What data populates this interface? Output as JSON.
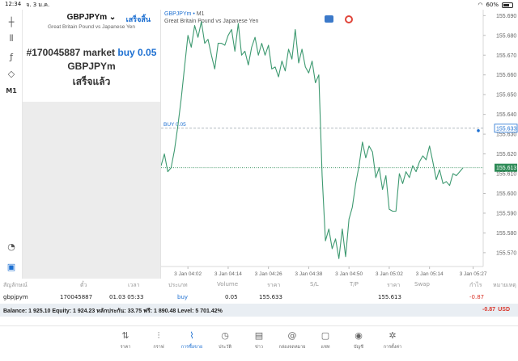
{
  "status_bar": {
    "time": "12:34",
    "date": "จ. 3 ม.ค.",
    "battery": "60%",
    "battery_level": 0.6
  },
  "order_panel": {
    "symbol": "GBPJPYm",
    "description": "Great Britain Pound vs Japanese Yen",
    "done_link": "เสร็จสิ้น",
    "order_number": "#170045887",
    "order_type": "market",
    "side_volume": "buy 0.05",
    "result_symbol": "GBPJPYm",
    "status": "เสร็จแล้ว"
  },
  "toolbar": {
    "tools": [
      {
        "name": "crosshair-icon",
        "glyph": "┼"
      },
      {
        "name": "indicators-icon",
        "glyph": "⫴"
      },
      {
        "name": "function-icon",
        "glyph": "ƒ"
      },
      {
        "name": "objects-icon",
        "glyph": "◇"
      },
      {
        "name": "timeframe-button",
        "glyph": "M1"
      }
    ],
    "bottom_tools": [
      {
        "name": "chart-settings-icon",
        "glyph": "◔"
      },
      {
        "name": "trade-icon",
        "glyph": "▣"
      }
    ]
  },
  "chart": {
    "symbol": "GBPJPYm",
    "timeframe": "M1",
    "description": "Great Britain Pound vs Japanese Yen",
    "buy_line_label": "BUY 0.05",
    "buy_price_label": "155.633",
    "bid_price_label": "155.613",
    "colors": {
      "line": "#3d9970",
      "buy_line": "#9aa3ad",
      "bid_line": "#2e8b57",
      "price_tag_blue": "#1c6fd1",
      "price_tag_green": "#2e8b57"
    }
  },
  "chart_data": {
    "type": "line",
    "title": "",
    "xlabel": "",
    "ylabel": "",
    "ylim": [
      155.563,
      155.693
    ],
    "y_ticks": [
      155.69,
      155.68,
      155.67,
      155.66,
      155.65,
      155.64,
      155.63,
      155.62,
      155.61,
      155.6,
      155.59,
      155.58,
      155.57
    ],
    "y_tick_labels": [
      "155.690",
      "155.680",
      "155.670",
      "155.660",
      "155.650",
      "155.640",
      "155.630",
      "155.620",
      "155.610",
      "155.600",
      "155.590",
      "155.580",
      "155.570"
    ],
    "x_tick_labels": [
      "3 Jan 04:02",
      "3 Jan 04:14",
      "3 Jan 04:26",
      "3 Jan 04:38",
      "3 Jan 04:50",
      "3 Jan 05:02",
      "3 Jan 05:14",
      "3 Jan 05:27"
    ],
    "x_tick_positions": [
      8,
      20,
      32,
      44,
      56,
      68,
      80,
      93
    ],
    "x_range": [
      0,
      96
    ],
    "buy_level": 155.633,
    "bid_level": 155.613,
    "series": [
      {
        "x": [
          0,
          1,
          2,
          3,
          4,
          5,
          6,
          7,
          8,
          9,
          10,
          11,
          12,
          13,
          14,
          15,
          16,
          17,
          18,
          19,
          20,
          21,
          22,
          23,
          24,
          25,
          26,
          27,
          28,
          29,
          30,
          31,
          32,
          33,
          34,
          35,
          36,
          37,
          38,
          39,
          40,
          41,
          42,
          43,
          44,
          45,
          46,
          47,
          48,
          49,
          50,
          51,
          52,
          53,
          54,
          55,
          56,
          57,
          58,
          59,
          60,
          61,
          62,
          63,
          64,
          65,
          66,
          67,
          68,
          69,
          70,
          71,
          72,
          73,
          74,
          75,
          76,
          77,
          78,
          79,
          80,
          81,
          82,
          83,
          84,
          85,
          86,
          87,
          88,
          89,
          90
        ],
        "values": [
          155.614,
          155.62,
          155.611,
          155.613,
          155.622,
          155.634,
          155.648,
          155.664,
          155.68,
          155.674,
          155.685,
          155.679,
          155.687,
          155.676,
          155.678,
          155.67,
          155.663,
          155.676,
          155.676,
          155.675,
          155.68,
          155.683,
          155.672,
          155.686,
          155.67,
          155.672,
          155.665,
          155.674,
          155.679,
          155.67,
          155.676,
          155.67,
          155.675,
          155.663,
          155.664,
          155.659,
          155.667,
          155.662,
          155.673,
          155.668,
          155.683,
          155.666,
          155.673,
          155.664,
          155.661,
          155.667,
          155.656,
          155.66,
          155.609,
          155.576,
          155.582,
          155.572,
          155.577,
          155.567,
          155.582,
          155.568,
          155.587,
          155.593,
          155.605,
          155.614,
          155.626,
          155.618,
          155.624,
          155.621,
          155.608,
          155.613,
          155.602,
          155.609,
          155.592,
          155.591,
          155.591,
          155.61,
          155.605,
          155.611,
          155.608,
          155.614,
          155.611,
          155.616,
          155.619,
          155.617,
          155.624,
          155.616,
          155.607,
          155.612,
          155.605,
          155.606,
          155.604,
          155.61,
          155.609,
          155.611,
          155.613
        ]
      }
    ]
  },
  "positions": {
    "headers": {
      "symbol": "สัญลักษณ์",
      "ticket": "ตั๋ว",
      "time": "เวลา",
      "type": "ประเภท",
      "volume": "Volume",
      "price": "ราคา",
      "sl": "S/L",
      "tp": "T/P",
      "current_price": "ราคา",
      "swap": "Swap",
      "profit": "กำไร",
      "comment": "หมายเหตุ"
    },
    "rows": [
      {
        "symbol": "gbpjpym",
        "ticket": "170045887",
        "time": "01.03 05:33",
        "type": "buy",
        "volume": "0.05",
        "price": "155.633",
        "sl": "",
        "tp": "",
        "current_price": "155.613",
        "swap": "",
        "profit": "-0.87",
        "comment": ""
      }
    ],
    "balance_text": "Balance: 1 925.10 Equity: 1 924.23 หลักประกัน: 33.75 ฟรี: 1 890.48 Level: 5 701.42%",
    "total_profit": "-0.87",
    "currency": "USD"
  },
  "tabbar": {
    "tabs": [
      {
        "name": "tab-quotes",
        "icon": "⇅",
        "label": "ราคา",
        "active": false
      },
      {
        "name": "tab-chart",
        "icon": "⫶",
        "label": "กราฟ",
        "active": false
      },
      {
        "name": "tab-trade",
        "icon": "⌇",
        "label": "การซื้อขาย",
        "active": true
      },
      {
        "name": "tab-history",
        "icon": "◷",
        "label": "ประวัติ",
        "active": false
      },
      {
        "name": "tab-news",
        "icon": "▤",
        "label": "ข่าว",
        "active": false
      },
      {
        "name": "tab-mailbox",
        "icon": "@",
        "label": "กล่องจดหมาย",
        "active": false
      },
      {
        "name": "tab-chat",
        "icon": "▢",
        "label": "แชท",
        "active": false
      },
      {
        "name": "tab-accounts",
        "icon": "◉",
        "label": "บัญชี",
        "active": false
      },
      {
        "name": "tab-settings",
        "icon": "✲",
        "label": "การตั้งค่า",
        "active": false
      }
    ]
  }
}
